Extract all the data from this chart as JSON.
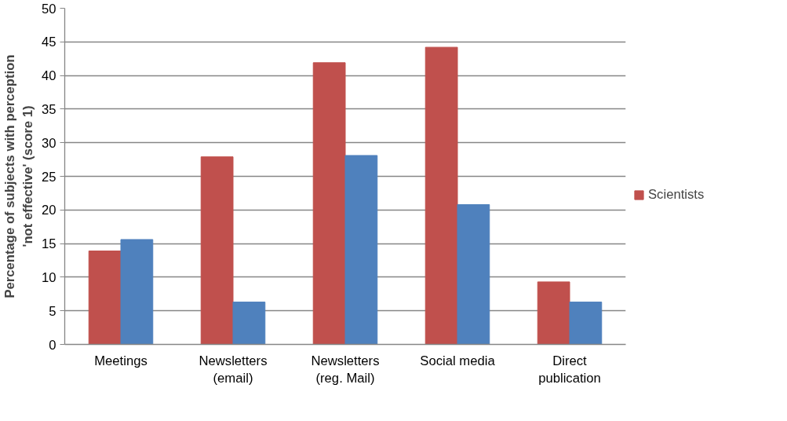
{
  "chart_data": {
    "type": "bar",
    "categories": [
      "Meetings",
      "Newsletters (email)",
      "Newsletters (reg. Mail)",
      "Social media",
      "Direct publication"
    ],
    "series": [
      {
        "name": "Scientists",
        "color": "#c0504d",
        "values": [
          13.9,
          27.9,
          41.9,
          44.2,
          9.3
        ]
      },
      {
        "color": "#4f81bd",
        "values": [
          15.6,
          6.3,
          28.1,
          20.8,
          6.3
        ]
      }
    ],
    "ylabel": "Percentage of subjects with perception 'not effective' (score 1)",
    "ylim": [
      0,
      50
    ],
    "yticks": [
      0,
      5,
      10,
      15,
      20,
      25,
      30,
      35,
      40,
      45,
      50
    ],
    "grid": "y",
    "legend": "right"
  }
}
